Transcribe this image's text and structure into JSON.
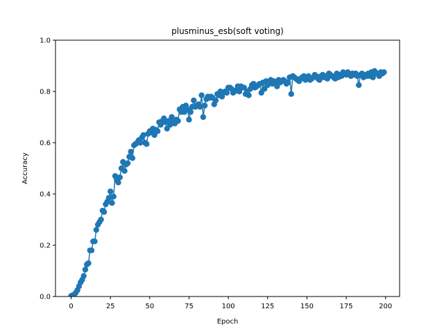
{
  "chart_data": {
    "type": "line",
    "title": "plusminus_esb(soft voting)",
    "xlabel": "Epoch",
    "ylabel": "Accuracy",
    "xlim": [
      -9.95,
      208.95
    ],
    "ylim": [
      0.0,
      1.0
    ],
    "xticks": [
      0,
      25,
      50,
      75,
      100,
      125,
      150,
      175,
      200
    ],
    "yticks": [
      0.0,
      0.2,
      0.4,
      0.6,
      0.8,
      1.0
    ],
    "xtick_labels": [
      "0",
      "25",
      "50",
      "75",
      "100",
      "125",
      "150",
      "175",
      "200"
    ],
    "ytick_labels": [
      "0.0",
      "0.2",
      "0.4",
      "0.6",
      "0.8",
      "1.0"
    ],
    "grid": false,
    "marker": "circle",
    "color": "#1f77b4",
    "series": [
      {
        "values": [
          0.002,
          0.005,
          0.008,
          0.015,
          0.025,
          0.04,
          0.055,
          0.065,
          0.08,
          0.105,
          0.125,
          0.13,
          0.18,
          0.18,
          0.215,
          0.215,
          0.26,
          0.28,
          0.29,
          0.3,
          0.335,
          0.33,
          0.36,
          0.37,
          0.385,
          0.41,
          0.365,
          0.39,
          0.47,
          0.455,
          0.445,
          0.465,
          0.5,
          0.525,
          0.49,
          0.515,
          0.52,
          0.545,
          0.565,
          0.54,
          0.59,
          0.595,
          0.6,
          0.61,
          0.6,
          0.62,
          0.63,
          0.6,
          0.595,
          0.635,
          0.645,
          0.64,
          0.655,
          0.63,
          0.65,
          0.645,
          0.68,
          0.67,
          0.685,
          0.695,
          0.68,
          0.655,
          0.685,
          0.67,
          0.7,
          0.68,
          0.675,
          0.69,
          0.685,
          0.73,
          0.72,
          0.74,
          0.72,
          0.745,
          0.73,
          0.69,
          0.72,
          0.74,
          0.765,
          0.74,
          0.745,
          0.75,
          0.74,
          0.785,
          0.7,
          0.745,
          0.77,
          0.78,
          0.775,
          0.78,
          0.775,
          0.75,
          0.765,
          0.79,
          0.785,
          0.8,
          0.78,
          0.795,
          0.8,
          0.795,
          0.815,
          0.815,
          0.81,
          0.795,
          0.8,
          0.805,
          0.82,
          0.8,
          0.82,
          0.815,
          0.815,
          0.79,
          0.8,
          0.785,
          0.81,
          0.825,
          0.83,
          0.815,
          0.82,
          0.825,
          0.83,
          0.795,
          0.835,
          0.81,
          0.84,
          0.825,
          0.835,
          0.845,
          0.83,
          0.84,
          0.835,
          0.82,
          0.845,
          0.835,
          0.84,
          0.845,
          0.84,
          0.83,
          0.835,
          0.855,
          0.79,
          0.86,
          0.855,
          0.85,
          0.845,
          0.84,
          0.85,
          0.855,
          0.86,
          0.845,
          0.85,
          0.86,
          0.845,
          0.85,
          0.855,
          0.865,
          0.86,
          0.85,
          0.845,
          0.86,
          0.865,
          0.855,
          0.86,
          0.85,
          0.87,
          0.865,
          0.86,
          0.855,
          0.85,
          0.87,
          0.855,
          0.865,
          0.86,
          0.875,
          0.87,
          0.865,
          0.875,
          0.865,
          0.86,
          0.87,
          0.865,
          0.87,
          0.86,
          0.825,
          0.865,
          0.87,
          0.855,
          0.865,
          0.86,
          0.87,
          0.86,
          0.875,
          0.855,
          0.88,
          0.87,
          0.87,
          0.86,
          0.875,
          0.87,
          0.875
        ]
      }
    ]
  }
}
